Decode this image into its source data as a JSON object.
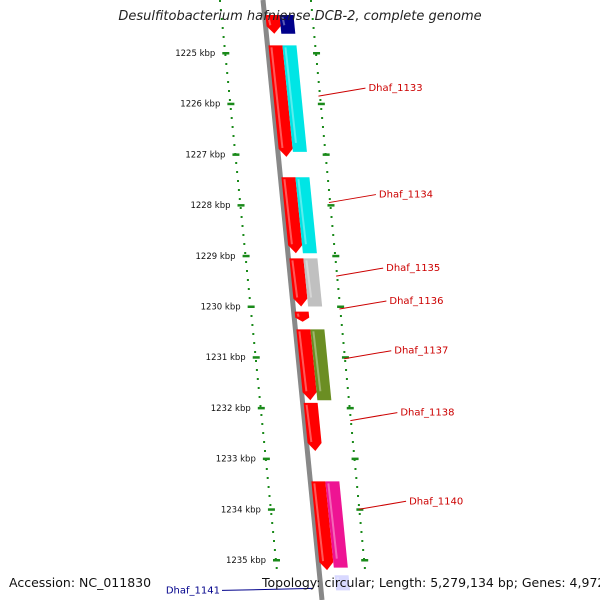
{
  "title": "Desulfitobacterium hafniense DCB-2, complete genome",
  "footer": {
    "accession": "Accession: NC_011830",
    "stats": "Topology: circular; Length: 5,279,134 bp; Genes: 4,972"
  },
  "colors": {
    "axis": "#888888",
    "gene_forward": "#ff0000",
    "ruler_dots": "#1a8a1a",
    "label_red": "#cc0000",
    "label_blue": "#00008b"
  },
  "ruler": {
    "ticks": [
      {
        "label": "1225 kbp",
        "kbp": 1225
      },
      {
        "label": "1226 kbp",
        "kbp": 1226
      },
      {
        "label": "1227 kbp",
        "kbp": 1227
      },
      {
        "label": "1228 kbp",
        "kbp": 1228
      },
      {
        "label": "1229 kbp",
        "kbp": 1229
      },
      {
        "label": "1230 kbp",
        "kbp": 1230
      },
      {
        "label": "1231 kbp",
        "kbp": 1231
      },
      {
        "label": "1232 kbp",
        "kbp": 1232
      },
      {
        "label": "1233 kbp",
        "kbp": 1233
      },
      {
        "label": "1234 kbp",
        "kbp": 1234
      },
      {
        "label": "1235 kbp",
        "kbp": 1235
      }
    ]
  },
  "genes": [
    {
      "start_kbp": 1224.25,
      "end_kbp": 1224.62,
      "color": "#ff0000",
      "track": "inner"
    },
    {
      "start_kbp": 1224.25,
      "end_kbp": 1224.62,
      "color": "#00008b",
      "track": "outer"
    },
    {
      "start_kbp": 1224.85,
      "end_kbp": 1227.05,
      "color": "#ff0000",
      "track": "inner"
    },
    {
      "start_kbp": 1224.85,
      "end_kbp": 1226.95,
      "color": "#00e5e5",
      "track": "outer"
    },
    {
      "start_kbp": 1227.45,
      "end_kbp": 1228.95,
      "color": "#ff0000",
      "track": "inner"
    },
    {
      "start_kbp": 1227.45,
      "end_kbp": 1228.95,
      "color": "#00e5e5",
      "track": "outer"
    },
    {
      "start_kbp": 1229.05,
      "end_kbp": 1230.0,
      "color": "#ff0000",
      "track": "inner"
    },
    {
      "start_kbp": 1229.05,
      "end_kbp": 1230.0,
      "color": "#c0c0c0",
      "track": "outer"
    },
    {
      "start_kbp": 1230.1,
      "end_kbp": 1230.3,
      "color": "#ff0000",
      "track": "inner"
    },
    {
      "start_kbp": 1230.45,
      "end_kbp": 1231.85,
      "color": "#ff0000",
      "track": "inner"
    },
    {
      "start_kbp": 1230.45,
      "end_kbp": 1231.85,
      "color": "#6b8e23",
      "track": "outer"
    },
    {
      "start_kbp": 1231.9,
      "end_kbp": 1232.85,
      "color": "#ff0000",
      "track": "inner"
    },
    {
      "start_kbp": 1233.45,
      "end_kbp": 1235.2,
      "color": "#ff0000",
      "track": "inner"
    },
    {
      "start_kbp": 1233.45,
      "end_kbp": 1235.15,
      "color": "#ee1493",
      "track": "outer"
    },
    {
      "start_kbp": 1235.3,
      "end_kbp": 1235.6,
      "color": "#d8d8ff",
      "track": "outer"
    }
  ],
  "labels": [
    {
      "text": "Dhaf_1133",
      "kbp": 1225.85,
      "side": "right",
      "color": "red"
    },
    {
      "text": "Dhaf_1134",
      "kbp": 1227.95,
      "side": "right",
      "color": "red"
    },
    {
      "text": "Dhaf_1135",
      "kbp": 1229.4,
      "side": "right",
      "color": "red"
    },
    {
      "text": "Dhaf_1136",
      "kbp": 1230.05,
      "side": "right",
      "color": "red"
    },
    {
      "text": "Dhaf_1137",
      "kbp": 1231.03,
      "side": "right",
      "color": "red"
    },
    {
      "text": "Dhaf_1138",
      "kbp": 1232.25,
      "side": "right",
      "color": "red"
    },
    {
      "text": "Dhaf_1140",
      "kbp": 1234.0,
      "side": "right",
      "color": "red"
    },
    {
      "text": "Dhaf_1141",
      "kbp": 1235.6,
      "side": "left",
      "color": "blue"
    }
  ]
}
